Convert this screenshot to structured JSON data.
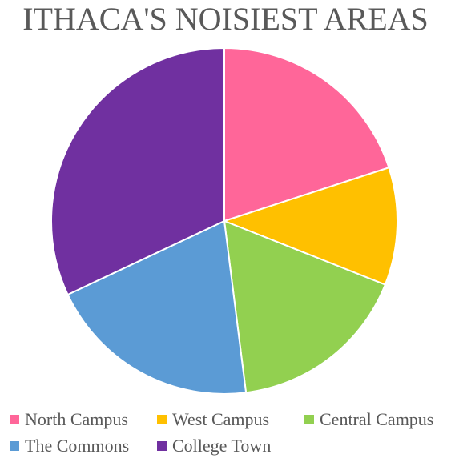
{
  "chart_data": {
    "type": "pie",
    "title": "ITHACA'S NOISIEST AREAS",
    "categories": [
      "North Campus",
      "West Campus",
      "Central Campus",
      "The Commons",
      "College Town"
    ],
    "values": [
      20,
      11,
      17,
      20,
      32
    ],
    "colors": [
      "#ff6699",
      "#ffc000",
      "#92d050",
      "#5b9bd5",
      "#7030a0"
    ],
    "legend_position": "bottom",
    "start_angle": "12 o'clock",
    "direction": "clockwise"
  }
}
